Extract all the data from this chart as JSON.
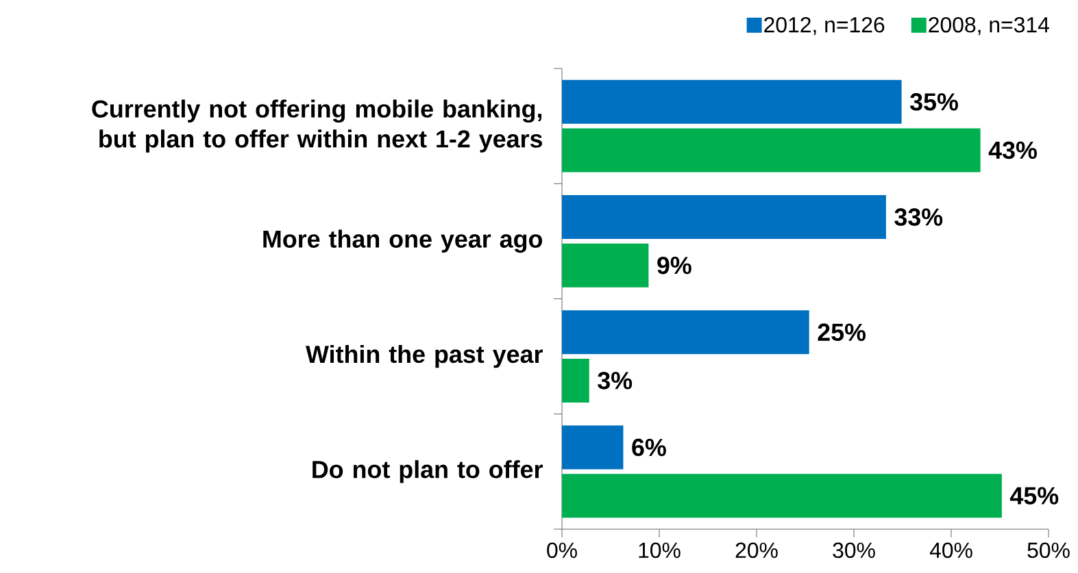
{
  "chart_data": {
    "type": "bar",
    "orientation": "horizontal",
    "categories": [
      "Currently not offering mobile banking, but plan to offer within next 1-2 years",
      "More than one year ago",
      "Within the past year",
      "Do not plan to offer"
    ],
    "series": [
      {
        "name": "2012, n=126",
        "color": "#0070c0",
        "values": [
          34.9,
          33.3,
          25.4,
          6.3
        ],
        "value_labels": [
          "35%",
          "33%",
          "25%",
          "6%"
        ]
      },
      {
        "name": "2008, n=314",
        "color": "#00b050",
        "values": [
          43.0,
          8.9,
          2.8,
          45.2
        ],
        "value_labels": [
          "43%",
          "9%",
          "3%",
          "45%"
        ]
      }
    ],
    "xlim": [
      0,
      50
    ],
    "xticks": [
      {
        "value": 0,
        "label": "0%"
      },
      {
        "value": 10,
        "label": "10%"
      },
      {
        "value": 20,
        "label": "20%"
      },
      {
        "value": 30,
        "label": "30%"
      },
      {
        "value": 40,
        "label": "40%"
      },
      {
        "value": 50,
        "label": "50%"
      }
    ],
    "legend": "top right"
  }
}
